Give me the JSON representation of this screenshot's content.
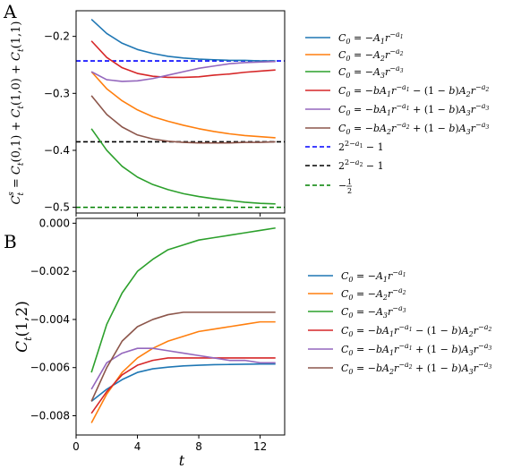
{
  "chart_data": [
    {
      "panel": "A",
      "type": "line",
      "ylabel": "C_t^s = C_t(0,1) + C_t(1,0) + C_t(1,1)",
      "xlim": [
        0,
        13.6
      ],
      "ylim": [
        -0.51,
        -0.155
      ],
      "yticks": [
        -0.2,
        -0.3,
        -0.4,
        -0.5
      ],
      "ytick_labels": [
        "−0.2",
        "−0.3",
        "−0.4",
        "−0.5"
      ],
      "x": [
        1,
        2,
        3,
        4,
        5,
        6,
        7,
        8,
        9,
        10,
        11,
        12,
        13
      ],
      "series": [
        {
          "name": "C_0 = −A_1 r^{−a_1}",
          "color": "#1f77b4",
          "values": [
            -0.17,
            -0.195,
            -0.212,
            -0.223,
            -0.23,
            -0.235,
            -0.238,
            -0.24,
            -0.241,
            -0.242,
            -0.242,
            -0.243,
            -0.243
          ]
        },
        {
          "name": "C_0 = −A_2 r^{−a_2}",
          "color": "#ff7f0e",
          "values": [
            -0.262,
            -0.292,
            -0.313,
            -0.329,
            -0.341,
            -0.349,
            -0.356,
            -0.362,
            -0.367,
            -0.371,
            -0.374,
            -0.376,
            -0.378
          ]
        },
        {
          "name": "C_0 = −A_3 r^{−a_3}",
          "color": "#2ca02c",
          "values": [
            -0.362,
            -0.4,
            -0.428,
            -0.447,
            -0.46,
            -0.469,
            -0.476,
            -0.481,
            -0.485,
            -0.488,
            -0.491,
            -0.493,
            -0.494
          ]
        },
        {
          "name": "C_0 = −bA_1 r^{−a_1} − (1−b)A_2 r^{−a_2}",
          "color": "#d62728",
          "values": [
            -0.208,
            -0.237,
            -0.255,
            -0.265,
            -0.27,
            -0.272,
            -0.272,
            -0.271,
            -0.268,
            -0.266,
            -0.263,
            -0.261,
            -0.259
          ]
        },
        {
          "name": "C_0 = −bA_1 r^{−a_1} + (1−b)A_3 r^{−a_3}",
          "color": "#9467bd",
          "values": [
            -0.262,
            -0.276,
            -0.279,
            -0.278,
            -0.274,
            -0.268,
            -0.262,
            -0.256,
            -0.252,
            -0.248,
            -0.246,
            -0.245,
            -0.244
          ]
        },
        {
          "name": "C_0 = −bA_2 r^{−a_2} + (1−b)A_3 r^{−a_3}",
          "color": "#8c564b",
          "values": [
            -0.304,
            -0.337,
            -0.359,
            -0.373,
            -0.38,
            -0.384,
            -0.386,
            -0.387,
            -0.387,
            -0.387,
            -0.386,
            -0.386,
            -0.385
          ]
        }
      ],
      "hlines": [
        {
          "name": "2^{2−a_1} − 1",
          "color": "#0000ff",
          "y": -0.243
        },
        {
          "name": "2^{2−a_2} − 1",
          "color": "#000000",
          "y": -0.385
        },
        {
          "name": "−1/2",
          "color": "#008000",
          "y": -0.5
        }
      ]
    },
    {
      "panel": "B",
      "type": "line",
      "xlabel": "t",
      "ylabel": "C_t(1,2)",
      "xlim": [
        0,
        13.6
      ],
      "ylim": [
        -0.0088,
        0.0002
      ],
      "xticks": [
        0,
        4,
        8,
        12
      ],
      "xtick_labels": [
        "0",
        "4",
        "8",
        "12"
      ],
      "yticks": [
        0.0,
        -0.002,
        -0.004,
        -0.006,
        -0.008
      ],
      "ytick_labels": [
        "0.000",
        "−0.002",
        "−0.004",
        "−0.006",
        "−0.008"
      ],
      "x": [
        1,
        2,
        3,
        4,
        5,
        6,
        7,
        8,
        9,
        10,
        11,
        12,
        13
      ],
      "series": [
        {
          "name": "C_0 = −A_1 r^{−a_1}",
          "color": "#1f77b4",
          "values": [
            -0.0074,
            -0.0069,
            -0.0065,
            -0.0062,
            -0.00605,
            -0.00598,
            -0.00593,
            -0.0059,
            -0.00588,
            -0.00587,
            -0.00586,
            -0.00585,
            -0.00585
          ]
        },
        {
          "name": "C_0 = −A_2 r^{−a_2}",
          "color": "#ff7f0e",
          "values": [
            -0.0083,
            -0.0071,
            -0.0062,
            -0.0056,
            -0.0052,
            -0.0049,
            -0.0047,
            -0.0045,
            -0.0044,
            -0.0043,
            -0.0042,
            -0.0041,
            -0.0041
          ]
        },
        {
          "name": "C_0 = −A_3 r^{−a_3}",
          "color": "#2ca02c",
          "values": [
            -0.0062,
            -0.0042,
            -0.0029,
            -0.002,
            -0.0015,
            -0.0011,
            -0.0009,
            -0.0007,
            -0.0006,
            -0.0005,
            -0.0004,
            -0.0003,
            -0.0002
          ]
        },
        {
          "name": "C_0 = −bA_1 r^{−a_1} − (1−b)A_2 r^{−a_2}",
          "color": "#d62728",
          "values": [
            -0.0079,
            -0.007,
            -0.0063,
            -0.0059,
            -0.0057,
            -0.0056,
            -0.0056,
            -0.0056,
            -0.0056,
            -0.0056,
            -0.0056,
            -0.0056,
            -0.0056
          ]
        },
        {
          "name": "C_0 = −bA_1 r^{−a_1} + (1−b)A_3 r^{−a_3}",
          "color": "#9467bd",
          "values": [
            -0.0069,
            -0.0058,
            -0.0054,
            -0.0052,
            -0.0052,
            -0.0053,
            -0.0054,
            -0.0055,
            -0.0056,
            -0.0057,
            -0.0057,
            -0.0058,
            -0.0058
          ]
        },
        {
          "name": "C_0 = −bA_2 r^{−a_2} + (1−b)A_3 r^{−a_3}",
          "color": "#8c564b",
          "values": [
            -0.0074,
            -0.006,
            -0.0049,
            -0.0043,
            -0.004,
            -0.0038,
            -0.0037,
            -0.0037,
            -0.0037,
            -0.0037,
            -0.0037,
            -0.0037,
            -0.0037
          ]
        }
      ]
    }
  ],
  "panel_letters": [
    "A",
    "B"
  ],
  "legend_labels": {
    "series": [
      "C_0 = −A_1 r^{−a_1}",
      "C_0 = −A_2 r^{−a_2}",
      "C_0 = −A_3 r^{−a_3}",
      "C_0 = −bA_1 r^{−a_1} − (1−b)A_2 r^{−a_2}",
      "C_0 = −bA_1 r^{−a_1} + (1−b)A_3 r^{−a_3}",
      "C_0 = −bA_2 r^{−a_2} + (1−b)A_3 r^{−a_3}"
    ],
    "hlines": [
      "2^{2−a_1} − 1",
      "2^{2−a_2} − 1",
      "−1/2"
    ]
  }
}
